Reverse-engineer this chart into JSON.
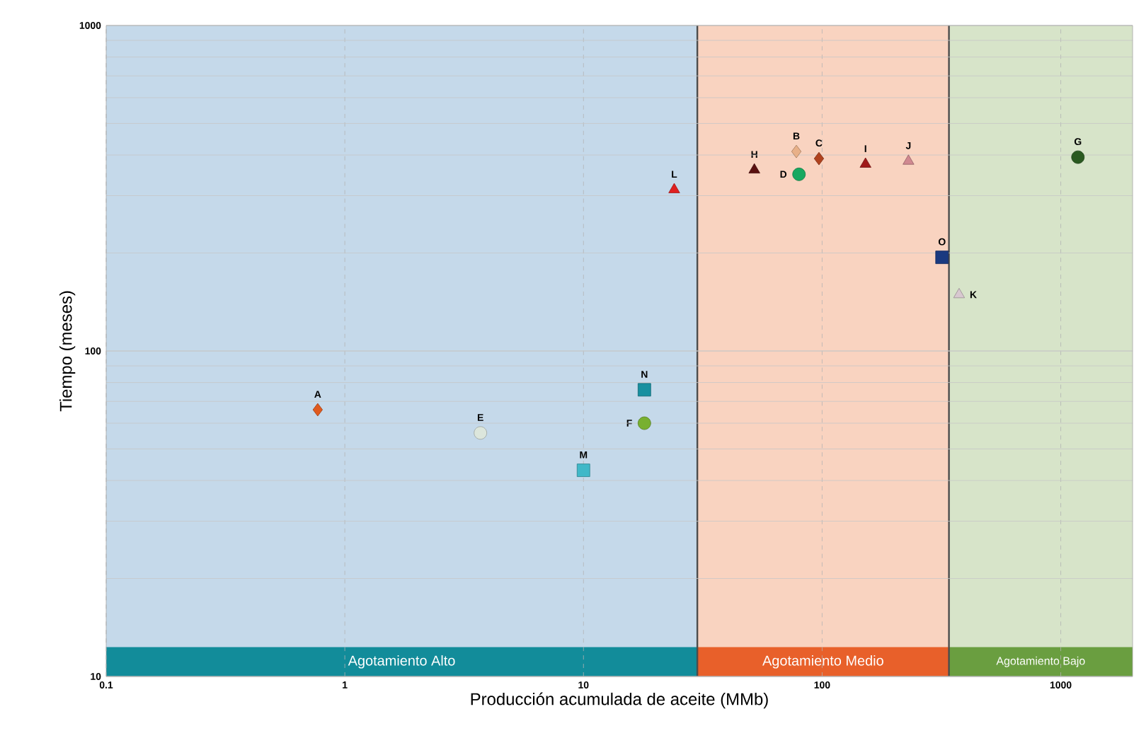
{
  "chart_data": {
    "type": "scatter",
    "xlabel": "Producción acumulada de aceite (MMb)",
    "ylabel": "Tiempo (meses)",
    "log": "xy",
    "grid": true,
    "xlim": [
      0.1,
      2000
    ],
    "ylim": [
      10,
      1000
    ],
    "xticks": [
      0.1,
      1,
      10,
      100,
      1000
    ],
    "yticks": [
      10,
      100,
      1000
    ],
    "bands": [
      {
        "axis": "x",
        "from": 0.1,
        "to": 30,
        "color": "#c5d9ea"
      },
      {
        "axis": "x",
        "from": 30,
        "to": 340,
        "color": "#f9d3c0"
      },
      {
        "axis": "x",
        "from": 340,
        "to": 2000,
        "color": "#d7e4c9"
      },
      {
        "axis": "x",
        "from": 0.1,
        "to": 30,
        "label": "Agotamiento Alto",
        "color": "#128c9a"
      },
      {
        "axis": "x",
        "from": 30,
        "to": 340,
        "label": "Agotamiento Medio",
        "color": "#e8602a"
      },
      {
        "axis": "x",
        "from": 340,
        "to": 2000,
        "label": "Agotamiento  Bajo",
        "color": "#6a9e40"
      }
    ],
    "ref_lines": [
      {
        "axis": "x",
        "value": 30,
        "color": "#4c4c4c"
      },
      {
        "axis": "x",
        "value": 340,
        "color": "#4c4c4c"
      }
    ],
    "series": [
      {
        "name": "A",
        "x": [
          0.77
        ],
        "values": [
          66
        ],
        "color": "#e05a1e",
        "marker": "diamond"
      },
      {
        "name": "B",
        "x": [
          78
        ],
        "values": [
          410
        ],
        "color": "#e8b088",
        "marker": "diamond"
      },
      {
        "name": "C",
        "x": [
          97
        ],
        "values": [
          390
        ],
        "color": "#b0421e",
        "marker": "diamond"
      },
      {
        "name": "D",
        "x": [
          80
        ],
        "values": [
          349
        ],
        "color": "#18a860",
        "marker": "circle"
      },
      {
        "name": "E",
        "x": [
          3.7
        ],
        "values": [
          56
        ],
        "color": "#dce6dc",
        "marker": "circle"
      },
      {
        "name": "F",
        "x": [
          18
        ],
        "values": [
          60
        ],
        "color": "#78b030",
        "marker": "circle"
      },
      {
        "name": "G",
        "x": [
          1180
        ],
        "values": [
          394
        ],
        "color": "#2a5a20",
        "marker": "circle"
      },
      {
        "name": "H",
        "x": [
          52
        ],
        "values": [
          360
        ],
        "color": "#5a1010",
        "marker": "triangle"
      },
      {
        "name": "I",
        "x": [
          152
        ],
        "values": [
          375
        ],
        "color": "#a01818",
        "marker": "triangle"
      },
      {
        "name": "J",
        "x": [
          230
        ],
        "values": [
          383
        ],
        "color": "#d08890",
        "marker": "triangle"
      },
      {
        "name": "K",
        "x": [
          375
        ],
        "values": [
          149
        ],
        "color": "#d8c8d0",
        "marker": "triangle"
      },
      {
        "name": "L",
        "x": [
          24
        ],
        "values": [
          313
        ],
        "color": "#e02020",
        "marker": "triangle"
      },
      {
        "name": "M",
        "x": [
          10
        ],
        "values": [
          43
        ],
        "color": "#40b8c8",
        "marker": "square"
      },
      {
        "name": "N",
        "x": [
          18
        ],
        "values": [
          76
        ],
        "color": "#1890a0",
        "marker": "square"
      },
      {
        "name": "O",
        "x": [
          318
        ],
        "values": [
          194
        ],
        "color": "#1a3a80",
        "marker": "square"
      }
    ]
  }
}
